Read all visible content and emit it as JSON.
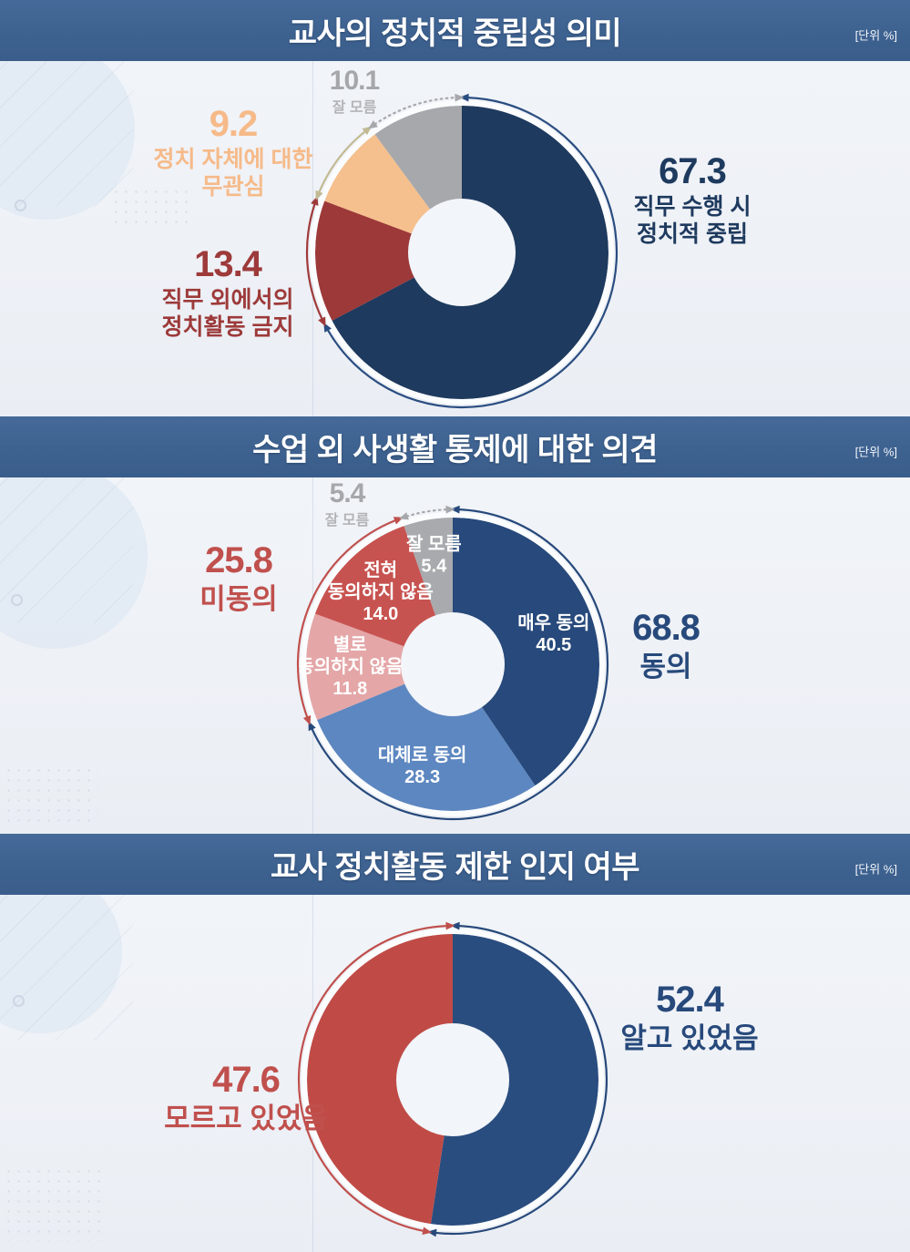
{
  "unit_label": "[단위 %]",
  "palette": {
    "header_bg": "#3e6290",
    "page_bg": "#eef1f6",
    "donut_hole": "#f2f5f9",
    "navy_dark": "#1e3a5e",
    "navy": "#27497b",
    "blue": "#5d87c0",
    "red_dark": "#9d3939",
    "red": "#c0504d",
    "pink": "#e4a6a7",
    "peach": "#f5c08d",
    "gray": "#a7a8ab",
    "tan_arrow": "#c2ba93"
  },
  "sections": [
    {
      "title": "교사의 정치적 중립성 의미",
      "unit": "[단위 %]",
      "callouts": [
        {
          "value": "10.1",
          "line1": "잘 모름"
        },
        {
          "value": "9.2",
          "line1": "정치 자체에 대한",
          "line2": "무관심"
        },
        {
          "value": "13.4",
          "line1": "직무 외에서의",
          "line2": "정치활동 금지"
        },
        {
          "value": "67.3",
          "line1": "직무 수행 시",
          "line2": "정치적 중립"
        }
      ]
    },
    {
      "title": "수업 외 사생활 통제에 대한 의견",
      "unit": "[단위 %]",
      "callouts": [
        {
          "value": "5.4",
          "line1": "잘 모름"
        },
        {
          "value": "25.8",
          "line1": "미동의"
        },
        {
          "value": "68.8",
          "line1": "동의"
        }
      ]
    },
    {
      "title": "교사 정치활동 제한 인지 여부",
      "unit": "[단위 %]",
      "callouts": [
        {
          "value": "52.4",
          "line1": "알고 있었음"
        },
        {
          "value": "47.6",
          "line1": "모르고 있었음"
        }
      ]
    }
  ],
  "chart_data": [
    {
      "type": "donut",
      "title": "교사의 정치적 중립성 의미",
      "unit": "%",
      "start_angle": "top-clockwise",
      "center": [
        507,
        210
      ],
      "outer_radius": 161,
      "inner_radius": 59,
      "hole_color": "#f2f5f9",
      "segments": [
        {
          "label": "직무 수행 시 정치적 중립",
          "value": 67.3,
          "color": "#1e3a5e"
        },
        {
          "label": "직무 외에서의 정치활동 금지",
          "value": 13.4,
          "color": "#9d3939"
        },
        {
          "label": "정치 자체에 대한 무관심",
          "value": 9.2,
          "color": "#f5c08d"
        },
        {
          "label": "잘 모름",
          "value": 10.1,
          "color": "#a7a8ab"
        }
      ],
      "arrows": [
        {
          "from_pct": 0,
          "to_pct": 67.3,
          "color": "#2a4d80",
          "dotted": false
        },
        {
          "from_pct": 67.3,
          "to_pct": 80.7,
          "color": "#a03a3a",
          "dotted": false
        },
        {
          "from_pct": 80.7,
          "to_pct": 89.9,
          "color": "#c2ba93",
          "dotted": false
        },
        {
          "from_pct": 89.9,
          "to_pct": 100,
          "color": "#a7a8ab",
          "dotted": true
        }
      ]
    },
    {
      "type": "donut",
      "title": "수업 외 사생활 통제에 대한 의견",
      "unit": "%",
      "start_angle": "top-clockwise",
      "center": [
        497,
        205
      ],
      "outer_radius": 161,
      "inner_radius": 57,
      "hole_color": "#f2f5f9",
      "segments": [
        {
          "label": "매우 동의",
          "value": 40.5,
          "color": "#27497b",
          "inner_lines": [
            "매우 동의",
            "40.5"
          ],
          "r_frac": 0.72
        },
        {
          "label": "대체로 동의",
          "value": 28.3,
          "color": "#5d87c0",
          "inner_lines": [
            "대체로 동의",
            "28.3"
          ],
          "r_frac": 0.72
        },
        {
          "label": "별로 동의하지 않음",
          "value": 11.8,
          "color": "#e4a6a7",
          "inner_lines": [
            "별로",
            "동의하지 않음",
            "11.8"
          ],
          "r_frac": 0.7
        },
        {
          "label": "전혀 동의하지 않음",
          "value": 14.0,
          "color": "#c75350",
          "inner_lines": [
            "전혀",
            "동의하지 않음",
            "14.0"
          ],
          "r_frac": 0.7
        },
        {
          "label": "잘 모름",
          "value": 5.4,
          "color": "#a9aaad",
          "inner_lines": [
            "잘 모름",
            "5.4"
          ],
          "r_frac": 0.76
        }
      ],
      "groups": [
        {
          "label": "동의",
          "value": 68.8
        },
        {
          "label": "미동의",
          "value": 25.8
        },
        {
          "label": "잘 모름",
          "value": 5.4
        }
      ],
      "arrows": [
        {
          "from_pct": 0,
          "to_pct": 68.8,
          "color": "#27497b",
          "dotted": false
        },
        {
          "from_pct": 68.8,
          "to_pct": 94.6,
          "color": "#c0504d",
          "dotted": false
        },
        {
          "from_pct": 94.6,
          "to_pct": 100,
          "color": "#a7a8ab",
          "dotted": true
        }
      ]
    },
    {
      "type": "donut",
      "title": "교사 정치활동 제한 인지 여부",
      "unit": "%",
      "start_angle": "top-clockwise",
      "center": [
        497,
        203
      ],
      "outer_radius": 160,
      "inner_radius": 62,
      "hole_color": "#f2f5f9",
      "segments": [
        {
          "label": "알고 있었음",
          "value": 52.4,
          "color": "#2a4d7f"
        },
        {
          "label": "모르고 있었음",
          "value": 47.6,
          "color": "#c04b46"
        }
      ],
      "arrows": [
        {
          "from_pct": 0,
          "to_pct": 52.4,
          "color": "#27497b",
          "dotted": false
        },
        {
          "from_pct": 52.4,
          "to_pct": 100,
          "color": "#c0504d",
          "dotted": false
        }
      ]
    }
  ]
}
